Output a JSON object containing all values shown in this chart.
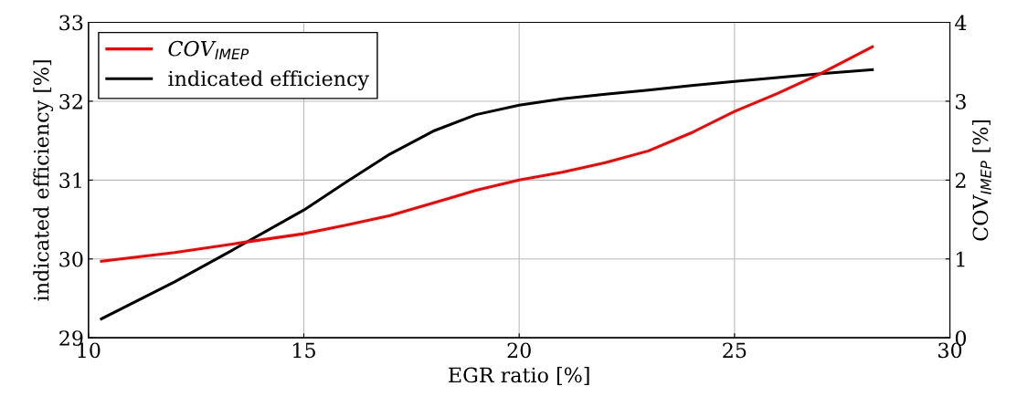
{
  "chart_data": {
    "type": "line",
    "xlabel": "EGR ratio [%]",
    "ylabel": "indicated efficiency [%]",
    "y2label": "COV$_{IMEP}$ [%]",
    "xlim": [
      10,
      30
    ],
    "xticks": [
      10,
      15,
      20,
      25,
      30
    ],
    "ylim": [
      29,
      33
    ],
    "yticks": [
      29,
      30,
      31,
      32,
      33
    ],
    "y2lim": [
      0,
      4
    ],
    "y2ticks": [
      0,
      1,
      2,
      3,
      4
    ],
    "grid": true,
    "legend": "top left",
    "series": [
      {
        "name": "COV$_{IMEP}$",
        "color": "#ff0000",
        "axis": "y2",
        "x": [
          10.3,
          12,
          13.6,
          15,
          16,
          17,
          18,
          19,
          20,
          21,
          22,
          23,
          24,
          25,
          26,
          27,
          28.2
        ],
        "values": [
          0.97,
          1.08,
          1.21,
          1.32,
          1.43,
          1.55,
          1.71,
          1.87,
          2.0,
          2.1,
          2.22,
          2.37,
          2.6,
          2.87,
          3.1,
          3.35,
          3.69
        ]
      },
      {
        "name": "indicated efficiency",
        "color": "#000000",
        "axis": "y",
        "x": [
          10.3,
          12,
          13.4,
          15,
          16,
          17,
          18,
          19,
          20,
          21,
          22,
          23,
          24,
          25,
          26,
          27,
          28.2
        ],
        "values": [
          29.24,
          29.71,
          30.13,
          30.62,
          30.98,
          31.33,
          31.62,
          31.83,
          31.95,
          32.03,
          32.09,
          32.14,
          32.2,
          32.25,
          32.3,
          32.35,
          32.4
        ]
      }
    ]
  }
}
